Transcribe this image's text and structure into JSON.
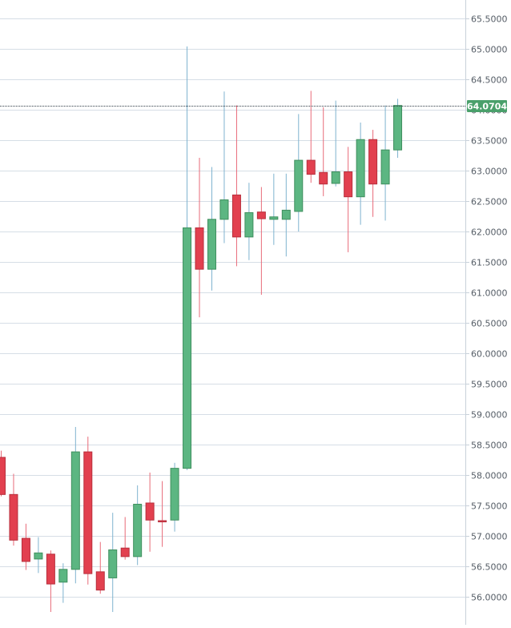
{
  "chart_data": {
    "type": "candlestick",
    "title": "",
    "xlabel": "",
    "ylabel": "",
    "ylim": [
      55.78,
      65.75
    ],
    "y_axis_position": "right",
    "y_ticks": [
      "56.0000",
      "56.5000",
      "57.0000",
      "57.5000",
      "58.0000",
      "58.5000",
      "59.0000",
      "59.5000",
      "60.0000",
      "60.5000",
      "61.0000",
      "61.5000",
      "62.0000",
      "62.5000",
      "63.0000",
      "63.5000",
      "64.0000",
      "64.5000",
      "65.0000",
      "65.5000"
    ],
    "grid": true,
    "current_price": 64.0704,
    "current_price_label": "64.0704",
    "colors": {
      "up": "#5cb682",
      "down": "#e2404f",
      "price_tag": "#4aa06b",
      "grid": "#d6dee6"
    },
    "candles": [
      {
        "open": 58.29,
        "high": 58.4,
        "low": 57.65,
        "close": 57.68
      },
      {
        "open": 57.68,
        "high": 58.02,
        "low": 56.84,
        "close": 56.93
      },
      {
        "open": 56.96,
        "high": 57.2,
        "low": 56.44,
        "close": 56.58
      },
      {
        "open": 56.62,
        "high": 56.98,
        "low": 56.39,
        "close": 56.72
      },
      {
        "open": 56.7,
        "high": 56.76,
        "low": 55.75,
        "close": 56.21
      },
      {
        "open": 56.24,
        "high": 56.55,
        "low": 55.9,
        "close": 56.45
      },
      {
        "open": 56.45,
        "high": 58.79,
        "low": 56.22,
        "close": 58.38
      },
      {
        "open": 58.38,
        "high": 58.63,
        "low": 56.2,
        "close": 56.38
      },
      {
        "open": 56.41,
        "high": 56.9,
        "low": 56.05,
        "close": 56.11
      },
      {
        "open": 56.31,
        "high": 57.38,
        "low": 55.75,
        "close": 56.77
      },
      {
        "open": 56.8,
        "high": 57.31,
        "low": 56.61,
        "close": 56.66
      },
      {
        "open": 56.66,
        "high": 57.83,
        "low": 56.52,
        "close": 57.52
      },
      {
        "open": 57.54,
        "high": 58.04,
        "low": 56.74,
        "close": 57.26
      },
      {
        "open": 57.25,
        "high": 57.9,
        "low": 56.82,
        "close": 57.23
      },
      {
        "open": 57.26,
        "high": 58.2,
        "low": 57.07,
        "close": 58.11
      },
      {
        "open": 58.11,
        "high": 65.04,
        "low": 58.08,
        "close": 62.06
      },
      {
        "open": 62.06,
        "high": 63.21,
        "low": 60.59,
        "close": 61.38
      },
      {
        "open": 61.38,
        "high": 63.06,
        "low": 61.03,
        "close": 62.2
      },
      {
        "open": 62.2,
        "high": 64.3,
        "low": 61.81,
        "close": 62.52
      },
      {
        "open": 62.6,
        "high": 64.07,
        "low": 61.43,
        "close": 61.91
      },
      {
        "open": 61.91,
        "high": 62.8,
        "low": 61.53,
        "close": 62.31
      },
      {
        "open": 62.32,
        "high": 62.73,
        "low": 60.96,
        "close": 62.21
      },
      {
        "open": 62.2,
        "high": 62.95,
        "low": 61.78,
        "close": 62.24
      },
      {
        "open": 62.2,
        "high": 62.95,
        "low": 61.59,
        "close": 62.35
      },
      {
        "open": 62.33,
        "high": 63.93,
        "low": 62.0,
        "close": 63.17
      },
      {
        "open": 63.17,
        "high": 64.31,
        "low": 62.8,
        "close": 62.94
      },
      {
        "open": 62.97,
        "high": 64.04,
        "low": 62.58,
        "close": 62.78
      },
      {
        "open": 62.79,
        "high": 64.15,
        "low": 62.74,
        "close": 62.98
      },
      {
        "open": 62.98,
        "high": 63.39,
        "low": 61.66,
        "close": 62.57
      },
      {
        "open": 62.57,
        "high": 63.79,
        "low": 62.11,
        "close": 63.51
      },
      {
        "open": 63.51,
        "high": 63.67,
        "low": 62.24,
        "close": 62.78
      },
      {
        "open": 62.78,
        "high": 64.07,
        "low": 62.18,
        "close": 63.34
      },
      {
        "open": 63.34,
        "high": 64.18,
        "low": 63.21,
        "close": 64.07
      }
    ]
  }
}
